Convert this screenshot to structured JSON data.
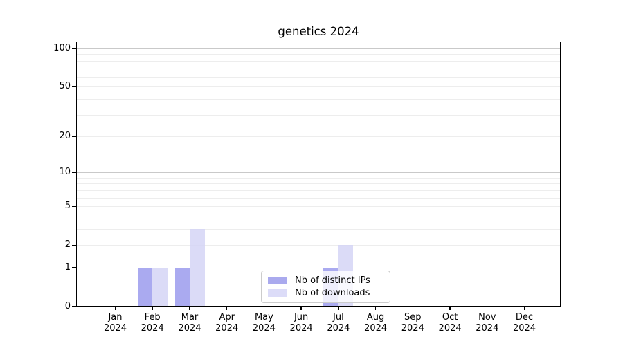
{
  "title": "genetics 2024",
  "chart_data": {
    "type": "bar",
    "title": "genetics 2024",
    "categories": [
      "Jan 2024",
      "Feb 2024",
      "Mar 2024",
      "Apr 2024",
      "May 2024",
      "Jun 2024",
      "Jul 2024",
      "Aug 2024",
      "Sep 2024",
      "Oct 2024",
      "Nov 2024",
      "Dec 2024"
    ],
    "x_months": [
      "Jan",
      "Feb",
      "Mar",
      "Apr",
      "May",
      "Jun",
      "Jul",
      "Aug",
      "Sep",
      "Oct",
      "Nov",
      "Dec"
    ],
    "x_year": "2024",
    "series": [
      {
        "name": "Nb of distinct IPs",
        "color": "rgba(149,149,236,0.8)",
        "legend_color": "#aaaaee",
        "values": [
          0,
          1,
          1,
          0,
          0,
          0,
          1,
          0,
          0,
          0,
          0,
          0
        ]
      },
      {
        "name": "Nb of downloads",
        "color": "rgba(210,210,245,0.8)",
        "legend_color": "#dcdcf8",
        "values": [
          0,
          1,
          3,
          0,
          0,
          0,
          2,
          0,
          0,
          0,
          0,
          0
        ]
      }
    ],
    "xlabel": "",
    "ylabel": "",
    "y_scale": "log1p",
    "y_ticks": [
      0,
      1,
      2,
      5,
      10,
      20,
      50,
      100
    ],
    "ylim": [
      0,
      113
    ],
    "grid": {
      "major_lines": [
        1,
        10,
        100
      ],
      "minor_lines": [
        2,
        3,
        4,
        5,
        6,
        7,
        8,
        9,
        20,
        30,
        40,
        50,
        60,
        70,
        80,
        90
      ],
      "major_color": "#c9c9c9",
      "minor_color": "#ededed"
    },
    "legend_position": "lower center"
  }
}
